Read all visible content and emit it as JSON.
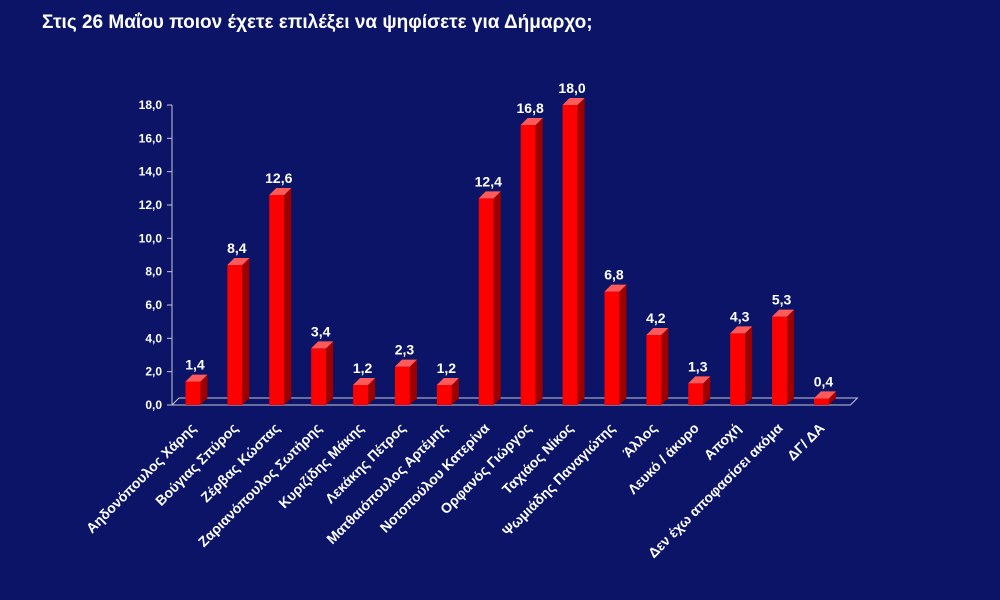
{
  "title": "Στις 26 Μαΐου ποιον έχετε επιλέξει να ψηφίσετε για Δήμαρχο;",
  "colors": {
    "background": "#0b1466",
    "bar": "#ff0000",
    "bar_side": "#9e0000",
    "bar_top": "#ff5a5a",
    "axis": "#c8c8d8",
    "text": "#ffffff"
  },
  "chart_data": {
    "type": "bar",
    "title": "Στις 26 Μαΐου ποιον έχετε επιλέξει να ψηφίσετε για Δήμαρχο;",
    "categories": [
      "Αηδονόπουλος Χάρης",
      "Βούγιας Σπύρος",
      "Ζέρβας Κώστας",
      "Ζαριανόπουλος Σωτήρης",
      "Κυριζίδης Μάκης",
      "Λεκάκης Πέτρος",
      "Ματθαιόπουλος Αρτέμης",
      "Νοτοπούλου Κατερίνα",
      "Ορφανός Γιώργος",
      "Ταχιάος Νίκος",
      "Ψωμιάδης Παναγιώτης",
      "Άλλος",
      "Λευκό / άκυρο",
      "Αποχή",
      "Δεν έχω αποφασίσει ακόμα",
      "ΔΓ/ ΔΑ"
    ],
    "values": [
      1.4,
      8.4,
      12.6,
      3.4,
      1.2,
      2.3,
      1.2,
      12.4,
      16.8,
      18.0,
      6.8,
      4.2,
      1.3,
      4.3,
      5.3,
      0.4
    ],
    "value_labels": [
      "1,4",
      "8,4",
      "12,6",
      "3,4",
      "1,2",
      "2,3",
      "1,2",
      "12,4",
      "16,8",
      "18,0",
      "6,8",
      "4,2",
      "1,3",
      "4,3",
      "5,3",
      "0,4"
    ],
    "ylim": [
      0,
      18
    ],
    "yticks": [
      0,
      2,
      4,
      6,
      8,
      10,
      12,
      14,
      16,
      18
    ],
    "ytick_labels": [
      "0,0",
      "2,0",
      "4,0",
      "6,0",
      "8,0",
      "10,0",
      "12,0",
      "14,0",
      "16,0",
      "18,0"
    ],
    "xlabel": "",
    "ylabel": "",
    "grid": false,
    "legend": "none"
  }
}
